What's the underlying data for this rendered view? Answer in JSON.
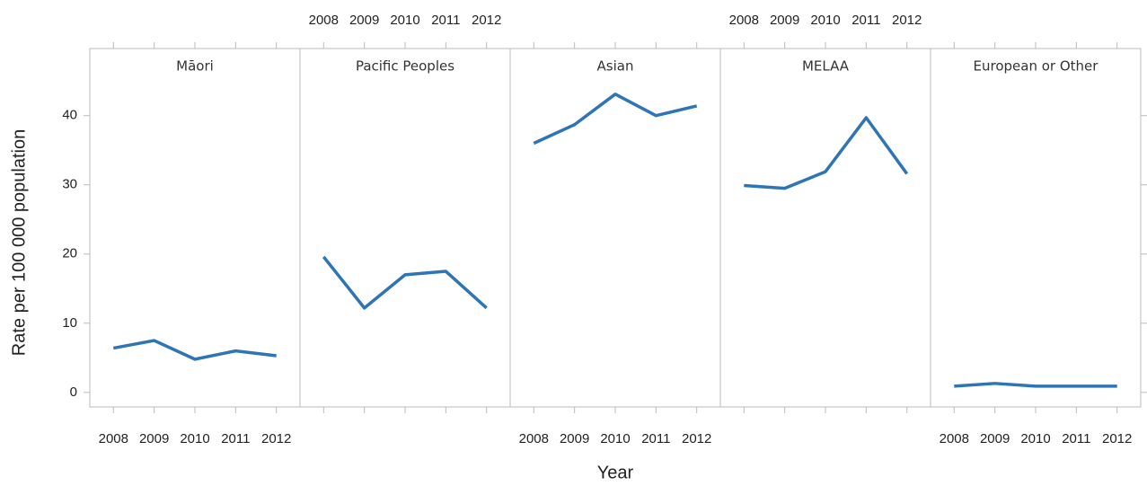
{
  "chart_data": [
    {
      "type": "line",
      "title": "Māori",
      "ylabel": "Rate per 100 000 population",
      "x": [
        2008,
        2009,
        2010,
        2011,
        2012
      ],
      "values": [
        6.4,
        7.5,
        4.8,
        6.0,
        5.3
      ],
      "color": "#2e75b6",
      "xlim": [
        2007.42,
        2012.58
      ],
      "xticks": [
        2008,
        2009,
        2010,
        2011,
        2012
      ],
      "ylim": [
        -2.1,
        49.7
      ],
      "yticks": [
        0,
        10,
        20,
        30,
        40
      ]
    },
    {
      "type": "line",
      "title": "Pacific Peoples",
      "x": [
        2008,
        2009,
        2010,
        2011,
        2012
      ],
      "values": [
        19.6,
        12.2,
        17.0,
        17.5,
        12.2
      ],
      "color": "#2e75b6",
      "xlim": [
        2007.42,
        2012.58
      ],
      "xticks": [
        2008,
        2009,
        2010,
        2011,
        2012
      ],
      "ylim": [
        -2.1,
        49.7
      ]
    },
    {
      "type": "line",
      "title": "Asian",
      "xlabel": "Year",
      "x": [
        2008,
        2009,
        2010,
        2011,
        2012
      ],
      "values": [
        36.0,
        38.7,
        43.1,
        40.0,
        41.4
      ],
      "color": "#2e75b6",
      "xlim": [
        2007.42,
        2012.58
      ],
      "xticks": [
        2008,
        2009,
        2010,
        2011,
        2012
      ],
      "ylim": [
        -2.1,
        49.7
      ]
    },
    {
      "type": "line",
      "title": "MELAA",
      "x": [
        2008,
        2009,
        2010,
        2011,
        2012
      ],
      "values": [
        29.9,
        29.5,
        31.9,
        39.7,
        31.6
      ],
      "color": "#2e75b6",
      "xlim": [
        2007.42,
        2012.58
      ],
      "xticks": [
        2008,
        2009,
        2010,
        2011,
        2012
      ],
      "ylim": [
        -2.1,
        49.7
      ]
    },
    {
      "type": "line",
      "title": "European or Other",
      "x": [
        2008,
        2009,
        2010,
        2011,
        2012
      ],
      "values": [
        0.9,
        1.3,
        0.9,
        0.9,
        0.9
      ],
      "color": "#2e75b6",
      "xlim": [
        2007.42,
        2012.58
      ],
      "xticks": [
        2008,
        2009,
        2010,
        2011,
        2012
      ],
      "ylim": [
        -2.1,
        49.7
      ]
    }
  ]
}
